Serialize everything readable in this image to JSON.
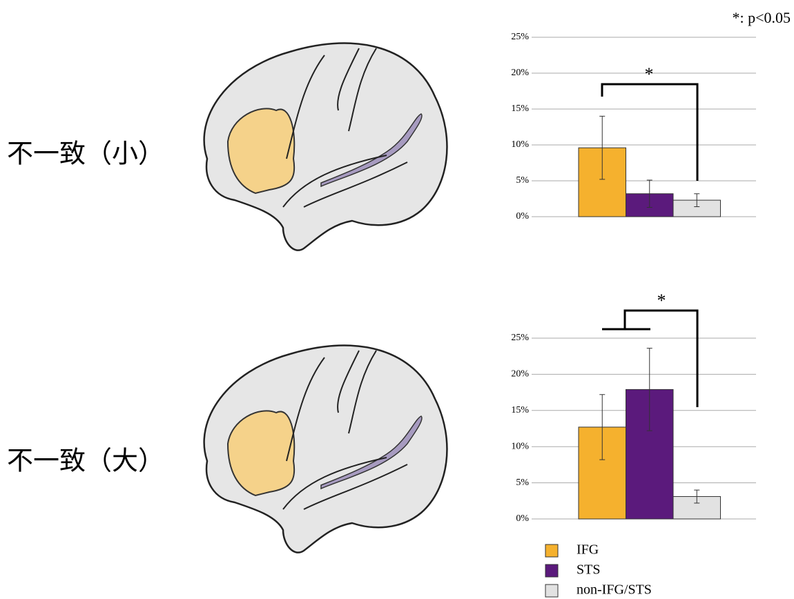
{
  "note": "*: p<0.05",
  "row_labels": [
    "不一致（小）",
    "不一致（大）"
  ],
  "chart_data": [
    {
      "type": "bar",
      "annotation": "*",
      "values": [
        9.6,
        3.2,
        2.3
      ],
      "errors": [
        4.4,
        1.9,
        0.9
      ],
      "colors": [
        "#f5b12e",
        "#5b1a7c",
        "#e2e2e2"
      ],
      "ylim": [
        0,
        25
      ],
      "yticks": [
        {
          "value": 0,
          "label": "0%"
        },
        {
          "value": 5,
          "label": "5%"
        },
        {
          "value": 10,
          "label": "10%"
        },
        {
          "value": 15,
          "label": "15%"
        },
        {
          "value": 20,
          "label": "20%"
        },
        {
          "value": 25,
          "label": "25%"
        }
      ],
      "grid": true
    },
    {
      "type": "bar",
      "annotation": "*",
      "categories": [
        "IFG",
        "STS",
        "non-IFG/STS"
      ],
      "values": [
        12.7,
        17.9,
        3.1
      ],
      "errors": [
        4.5,
        5.7,
        0.9
      ],
      "colors": [
        "#f5b12e",
        "#5b1a7c",
        "#e2e2e2"
      ],
      "ylim": [
        0,
        25
      ],
      "yticks": [
        {
          "value": 0,
          "label": "0%"
        },
        {
          "value": 5,
          "label": "5%"
        },
        {
          "value": 10,
          "label": "10%"
        },
        {
          "value": 15,
          "label": "15%"
        },
        {
          "value": 20,
          "label": "20%"
        },
        {
          "value": 25,
          "label": "25%"
        }
      ],
      "grid": true
    }
  ]
}
